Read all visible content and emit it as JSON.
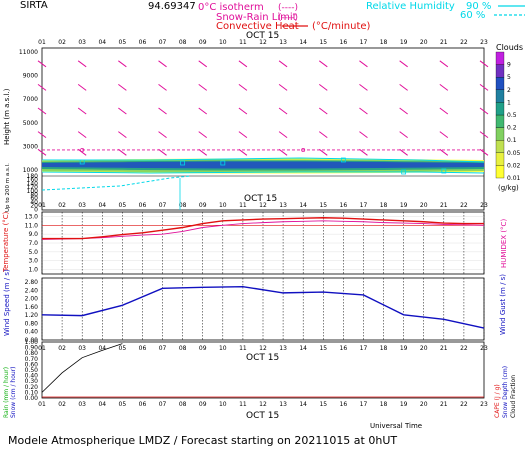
{
  "header": {
    "station": "SIRTA",
    "coords": "94.69347",
    "legend_isotherm": "0°C isotherm",
    "legend_isotherm_sym": "(----)",
    "legend_snowrain": "Snow-Rain Limit",
    "legend_snowrain_sym": "(----)",
    "legend_convective": "Convective Heat",
    "legend_convective_unit": "(°C/minute)",
    "legend_rh": "Relative Humidity",
    "legend_rh_90": "90 %",
    "legend_rh_60": "60 %"
  },
  "date_label": "OCT 15",
  "hours": [
    "01",
    "02",
    "03",
    "04",
    "05",
    "06",
    "07",
    "08",
    "09",
    "10",
    "11",
    "12",
    "13",
    "14",
    "15",
    "16",
    "17",
    "18",
    "19",
    "20",
    "21",
    "22",
    "23"
  ],
  "colors": {
    "magenta": "#e0109a",
    "cyan": "#00d8e8",
    "red": "#e01010",
    "blue": "#1010c0",
    "dark_red": "#c01010"
  },
  "cloud_scale": {
    "title": "Clouds",
    "unit": "(g/kg)",
    "levels": [
      "0.01",
      "0.02",
      "0.05",
      "0.1",
      "0.2",
      "0.5",
      "1",
      "2",
      "5",
      "9"
    ],
    "colors": [
      "#ffff33",
      "#e8f040",
      "#c0e050",
      "#80d060",
      "#40b870",
      "#20a088",
      "#2080a0",
      "#2050c0",
      "#7030c0",
      "#c020e0"
    ]
  },
  "footer": {
    "model": "Modele Atmospherique LMDZ / Forecast starting on 20211015 at 0hUT",
    "universal_time": "Universal Time"
  },
  "chart_data": [
    {
      "type": "line",
      "id": "height-panel",
      "ylabel": "Height (m a.s.l.)",
      "ylabel2": "Up to 200 m a.s.l.",
      "yticks": [
        "11000",
        "9000",
        "7000",
        "5000",
        "3000",
        "1000",
        "180",
        "160",
        "140",
        "120",
        "100",
        "80",
        "60",
        "40",
        "20",
        "0"
      ],
      "x": [
        1,
        2,
        3,
        4,
        5,
        6,
        7,
        8,
        9,
        10,
        11,
        12,
        13,
        14,
        15,
        16,
        17,
        18,
        19,
        20,
        21,
        22,
        23
      ],
      "isotherm_height_m": [
        2700,
        2700,
        2700,
        2700,
        2700,
        2700,
        2700,
        2700,
        2700,
        2700,
        2700,
        2700,
        2700,
        2700,
        2700,
        2700,
        2700,
        2700,
        2700,
        2700,
        2700,
        2700,
        2700
      ]
    },
    {
      "type": "line",
      "id": "temperature-panel",
      "ylabel": "Temperature (°C)",
      "ylabel2": "HUMIDEX (°C)",
      "yticks": [
        "13.0",
        "11.0",
        "9.0",
        "7.0",
        "5.0",
        "3.0",
        "1.0"
      ],
      "ylim": [
        0,
        14
      ],
      "x": [
        1,
        2,
        3,
        4,
        5,
        6,
        7,
        8,
        9,
        10,
        11,
        12,
        13,
        14,
        15,
        16,
        17,
        18,
        19,
        20,
        21,
        22,
        23
      ],
      "series": [
        {
          "name": "Temperature",
          "values": [
            8.0,
            8.0,
            8.0,
            8.4,
            8.9,
            9.3,
            9.9,
            10.5,
            11.4,
            12.0,
            12.2,
            12.4,
            12.5,
            12.6,
            12.7,
            12.6,
            12.4,
            12.2,
            12.0,
            11.8,
            11.5,
            11.4,
            11.4
          ]
        },
        {
          "name": "HUMIDEX",
          "values": [
            7.8,
            7.9,
            8.0,
            8.2,
            8.5,
            8.8,
            9.0,
            9.6,
            10.5,
            11.0,
            11.4,
            11.6,
            11.8,
            11.9,
            12.0,
            11.9,
            11.8,
            11.6,
            11.5,
            11.4,
            11.2,
            11.1,
            11.0
          ]
        }
      ]
    },
    {
      "type": "line",
      "id": "wind-panel",
      "ylabel": "Wind Speed (m / s)",
      "ylabel2": "Wind Gust (m / s)",
      "yticks": [
        "2.80",
        "2.40",
        "2.00",
        "1.60",
        "1.20",
        "0.80",
        "0.40",
        "0.00"
      ],
      "ylim": [
        0,
        3.0
      ],
      "x": [
        1,
        3,
        5,
        7,
        9,
        11,
        13,
        15,
        17,
        19,
        21,
        23
      ],
      "series": [
        {
          "name": "Wind Speed",
          "values": [
            1.22,
            1.18,
            1.68,
            2.5,
            2.55,
            2.58,
            2.28,
            2.32,
            2.18,
            1.22,
            1.0,
            0.58
          ]
        }
      ]
    },
    {
      "type": "line",
      "id": "rain-panel",
      "ylabel": "Rain (mm / hour)",
      "ylabel_snow": "Snow (cm / hour)",
      "ylabel2": "CAPE (J / g)",
      "ylabel2_snow": "Snow Depth (cm)",
      "ylabel2_cloud": "Cloud Fraction",
      "yticks": [
        "1.00",
        "0.90",
        "0.80",
        "0.70",
        "0.60",
        "0.50",
        "0.40",
        "0.30",
        "0.20",
        "0.10",
        "0.00"
      ],
      "ylim": [
        0,
        1.0
      ],
      "x": [
        1,
        2,
        3,
        4,
        5
      ],
      "series": [
        {
          "name": "Cloud Fraction",
          "values": [
            0.1,
            0.45,
            0.72,
            0.85,
            0.97
          ]
        }
      ]
    }
  ]
}
